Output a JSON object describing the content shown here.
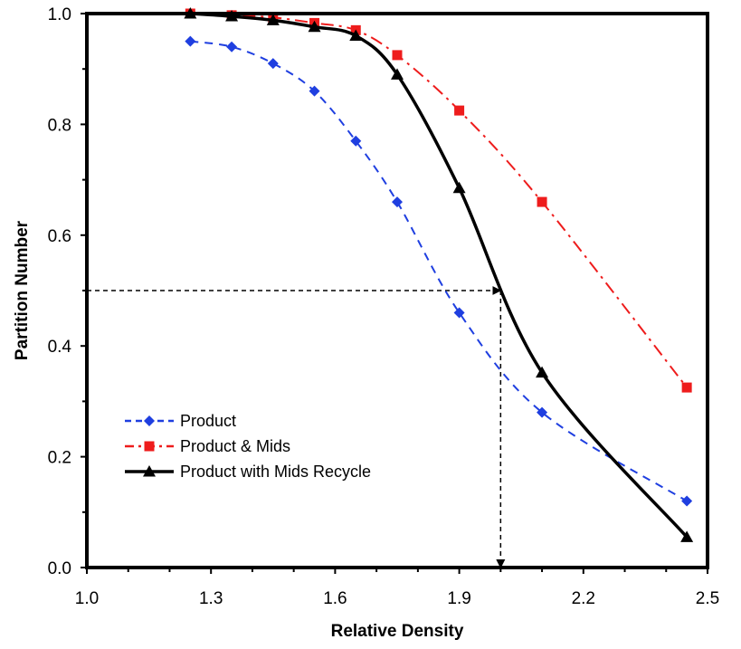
{
  "chart_data": {
    "type": "line",
    "title": "",
    "xlabel": "Relative Density",
    "ylabel": "Partition Number",
    "xlim": [
      1.0,
      2.5
    ],
    "ylim": [
      0.0,
      1.0
    ],
    "x_ticks": [
      "1.0",
      "1.3",
      "1.6",
      "1.9",
      "2.2",
      "2.5"
    ],
    "y_ticks": [
      "0.0",
      "0.2",
      "0.4",
      "0.6",
      "0.8",
      "1.0"
    ],
    "grid": false,
    "legend_position": "lower-left",
    "series": [
      {
        "name": "Product",
        "color": "#1f3fe0",
        "line_style": "dashed",
        "marker": "diamond",
        "x": [
          1.25,
          1.35,
          1.45,
          1.55,
          1.65,
          1.75,
          1.9,
          2.1,
          2.45
        ],
        "y": [
          0.95,
          0.94,
          0.91,
          0.86,
          0.77,
          0.66,
          0.46,
          0.28,
          0.12
        ]
      },
      {
        "name": "Product & Mids",
        "color": "#ee1c1c",
        "line_style": "dash-dot",
        "marker": "square",
        "x": [
          1.25,
          1.35,
          1.45,
          1.55,
          1.65,
          1.75,
          1.9,
          2.1,
          2.45
        ],
        "y": [
          1.0,
          0.997,
          0.993,
          0.983,
          0.97,
          0.925,
          0.825,
          0.66,
          0.325
        ]
      },
      {
        "name": "Product with Mids Recycle",
        "color": "#000000",
        "line_style": "solid",
        "marker": "triangle",
        "x": [
          1.25,
          1.35,
          1.45,
          1.55,
          1.65,
          1.75,
          1.9,
          2.1,
          2.45
        ],
        "y": [
          1.0,
          0.995,
          0.988,
          0.976,
          0.96,
          0.89,
          0.685,
          0.352,
          0.055
        ]
      }
    ],
    "annotation_arrows": [
      {
        "from": [
          1.0,
          0.5
        ],
        "to": [
          2.0,
          0.5
        ]
      },
      {
        "from": [
          2.0,
          0.5
        ],
        "to": [
          2.0,
          0.0
        ]
      }
    ]
  }
}
